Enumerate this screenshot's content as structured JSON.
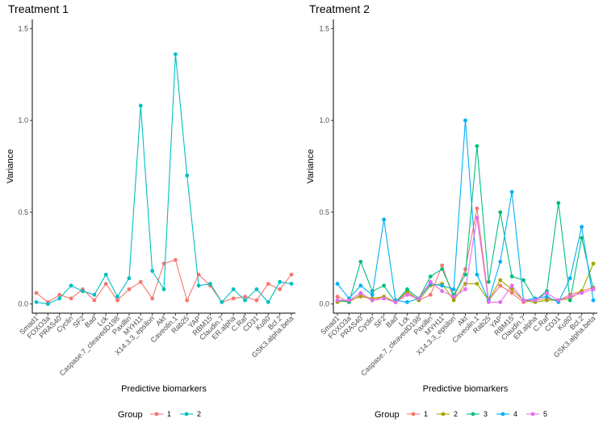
{
  "chart_data": [
    {
      "type": "line",
      "title": "Treatment 1",
      "xlabel": "Predictive biomarkers",
      "ylabel": "Variance",
      "ylim": [
        -0.05,
        1.55
      ],
      "yticks": [
        0.0,
        0.5,
        1.0,
        1.5
      ],
      "ytick_labels": [
        "0.0",
        "0.5",
        "1.0",
        "1.5"
      ],
      "categories": [
        "Smad1",
        "FOXO3a",
        "PRAS40",
        "Cyclin",
        "SF2",
        "Bad",
        "Lck",
        "Caspase.7_cleavedD198",
        "Paxillin",
        "MYH11",
        "X14.3.3_epsilon",
        "Akt",
        "Caveolin.1",
        "Rab25",
        "YAP",
        "RBM15",
        "Claudin.7",
        "ER.alpha",
        "C.Raf",
        "CD31",
        "Ku80",
        "Bcl.2",
        "GSK3.alpha.beta"
      ],
      "series": [
        {
          "name": "1",
          "color": "#F8766D",
          "values": [
            0.06,
            0.01,
            0.05,
            0.03,
            0.08,
            0.02,
            0.11,
            0.02,
            0.08,
            0.12,
            0.03,
            0.22,
            0.24,
            0.02,
            0.16,
            0.1,
            0.01,
            0.03,
            0.04,
            0.02,
            0.11,
            0.08,
            0.16
          ]
        },
        {
          "name": "2",
          "color": "#00BFC4",
          "values": [
            0.01,
            0.0,
            0.03,
            0.1,
            0.07,
            0.05,
            0.16,
            0.04,
            0.14,
            1.08,
            0.18,
            0.08,
            1.36,
            0.7,
            0.1,
            0.11,
            0.01,
            0.08,
            0.02,
            0.08,
            0.01,
            0.12,
            0.11
          ]
        }
      ],
      "legend_title": "Group",
      "legend_position": "bottom"
    },
    {
      "type": "line",
      "title": "Treatment 2",
      "xlabel": "Predictive biomarkers",
      "ylabel": "Variance",
      "ylim": [
        -0.05,
        1.55
      ],
      "yticks": [
        0.0,
        0.5,
        1.0,
        1.5
      ],
      "ytick_labels": [
        "0.0",
        "0.5",
        "1.0",
        "1.5"
      ],
      "categories": [
        "Smad1",
        "FOXO3a",
        "PRAS40",
        "Cyclin",
        "SF2",
        "Bad",
        "Lck",
        "Caspase.7_cleavedD198",
        "Paxillin",
        "MYH11",
        "X14.3.3_epsilon",
        "Akt",
        "Caveolin.1",
        "Rab25",
        "YAP",
        "RBM15",
        "Claudin.7",
        "ER.alpha",
        "C.Raf",
        "CD31",
        "Ku80",
        "Bcl.2",
        "GSK3.alpha.beta"
      ],
      "series": [
        {
          "name": "1",
          "color": "#F8766D",
          "values": [
            0.04,
            0.01,
            0.05,
            0.02,
            0.04,
            0.01,
            0.06,
            0.02,
            0.05,
            0.21,
            0.03,
            0.19,
            0.52,
            0.02,
            0.1,
            0.06,
            0.01,
            0.02,
            0.03,
            0.02,
            0.05,
            0.07,
            0.09
          ]
        },
        {
          "name": "2",
          "color": "#A3A500",
          "values": [
            0.01,
            0.02,
            0.04,
            0.03,
            0.04,
            0.01,
            0.07,
            0.02,
            0.1,
            0.11,
            0.02,
            0.11,
            0.11,
            0.02,
            0.13,
            0.08,
            0.02,
            0.01,
            0.02,
            0.02,
            0.03,
            0.07,
            0.22
          ]
        },
        {
          "name": "3",
          "color": "#00BF7D",
          "values": [
            0.02,
            0.01,
            0.23,
            0.07,
            0.1,
            0.01,
            0.08,
            0.03,
            0.15,
            0.19,
            0.05,
            0.16,
            0.86,
            0.12,
            0.5,
            0.15,
            0.13,
            0.02,
            0.07,
            0.55,
            0.02,
            0.36,
            0.08
          ]
        },
        {
          "name": "4",
          "color": "#00B0F6",
          "values": [
            0.11,
            0.03,
            0.1,
            0.05,
            0.46,
            0.02,
            0.01,
            0.03,
            0.11,
            0.1,
            0.08,
            1.0,
            0.16,
            0.02,
            0.23,
            0.61,
            0.02,
            0.03,
            0.04,
            0.01,
            0.14,
            0.42,
            0.02
          ]
        },
        {
          "name": "5",
          "color": "#E76BF3",
          "values": [
            0.02,
            0.02,
            0.06,
            0.02,
            0.03,
            0.01,
            0.05,
            0.03,
            0.12,
            0.07,
            0.04,
            0.08,
            0.47,
            0.01,
            0.01,
            0.1,
            0.02,
            0.02,
            0.06,
            0.02,
            0.04,
            0.06,
            0.08
          ]
        }
      ],
      "legend_title": "Group",
      "legend_position": "bottom"
    }
  ]
}
